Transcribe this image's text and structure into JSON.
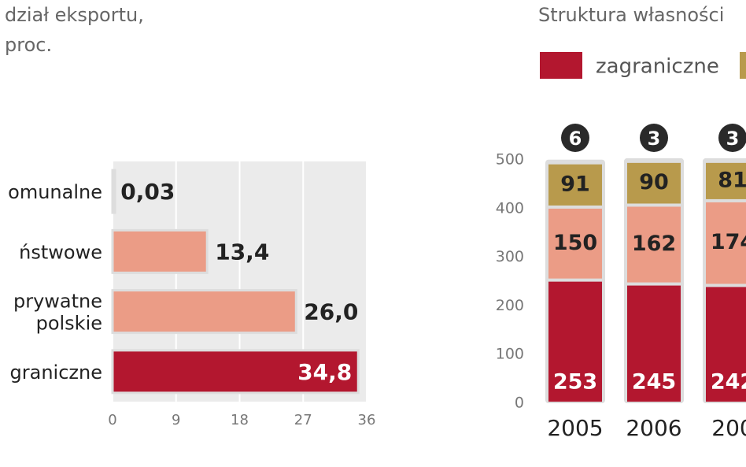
{
  "chart_data": [
    {
      "type": "hbar",
      "title_lines": [
        "dział eksportu,",
        "proc."
      ],
      "categories": [
        "omunalne",
        "ństwowe",
        "prywatne\npolskie",
        "graniczne"
      ],
      "values": [
        0.03,
        13.4,
        26.0,
        34.8
      ],
      "value_labels": [
        "0,03",
        "13,4",
        "26,0",
        "34,8"
      ],
      "colors": [
        "#f2efee",
        "#eb9c86",
        "#eb9c86",
        "#b3172f"
      ],
      "xlim": [
        0,
        36
      ],
      "xticks": [
        0,
        9,
        18,
        27,
        36
      ],
      "grid": true
    },
    {
      "type": "stacked-bar",
      "title": "Struktura własności",
      "categories": [
        "2005",
        "2006",
        "200"
      ],
      "annotations": [
        6,
        3,
        3
      ],
      "series": [
        {
          "name": "zagraniczne",
          "color": "#b3172f",
          "values": [
            253,
            245,
            242
          ]
        },
        {
          "color": "#eb9c86",
          "values": [
            150,
            162,
            174
          ]
        },
        {
          "color": "#b89a4c",
          "values": [
            91,
            90,
            81
          ]
        }
      ],
      "ylim": [
        0,
        500
      ],
      "yticks": [
        0,
        100,
        200,
        300,
        400,
        500
      ]
    }
  ]
}
